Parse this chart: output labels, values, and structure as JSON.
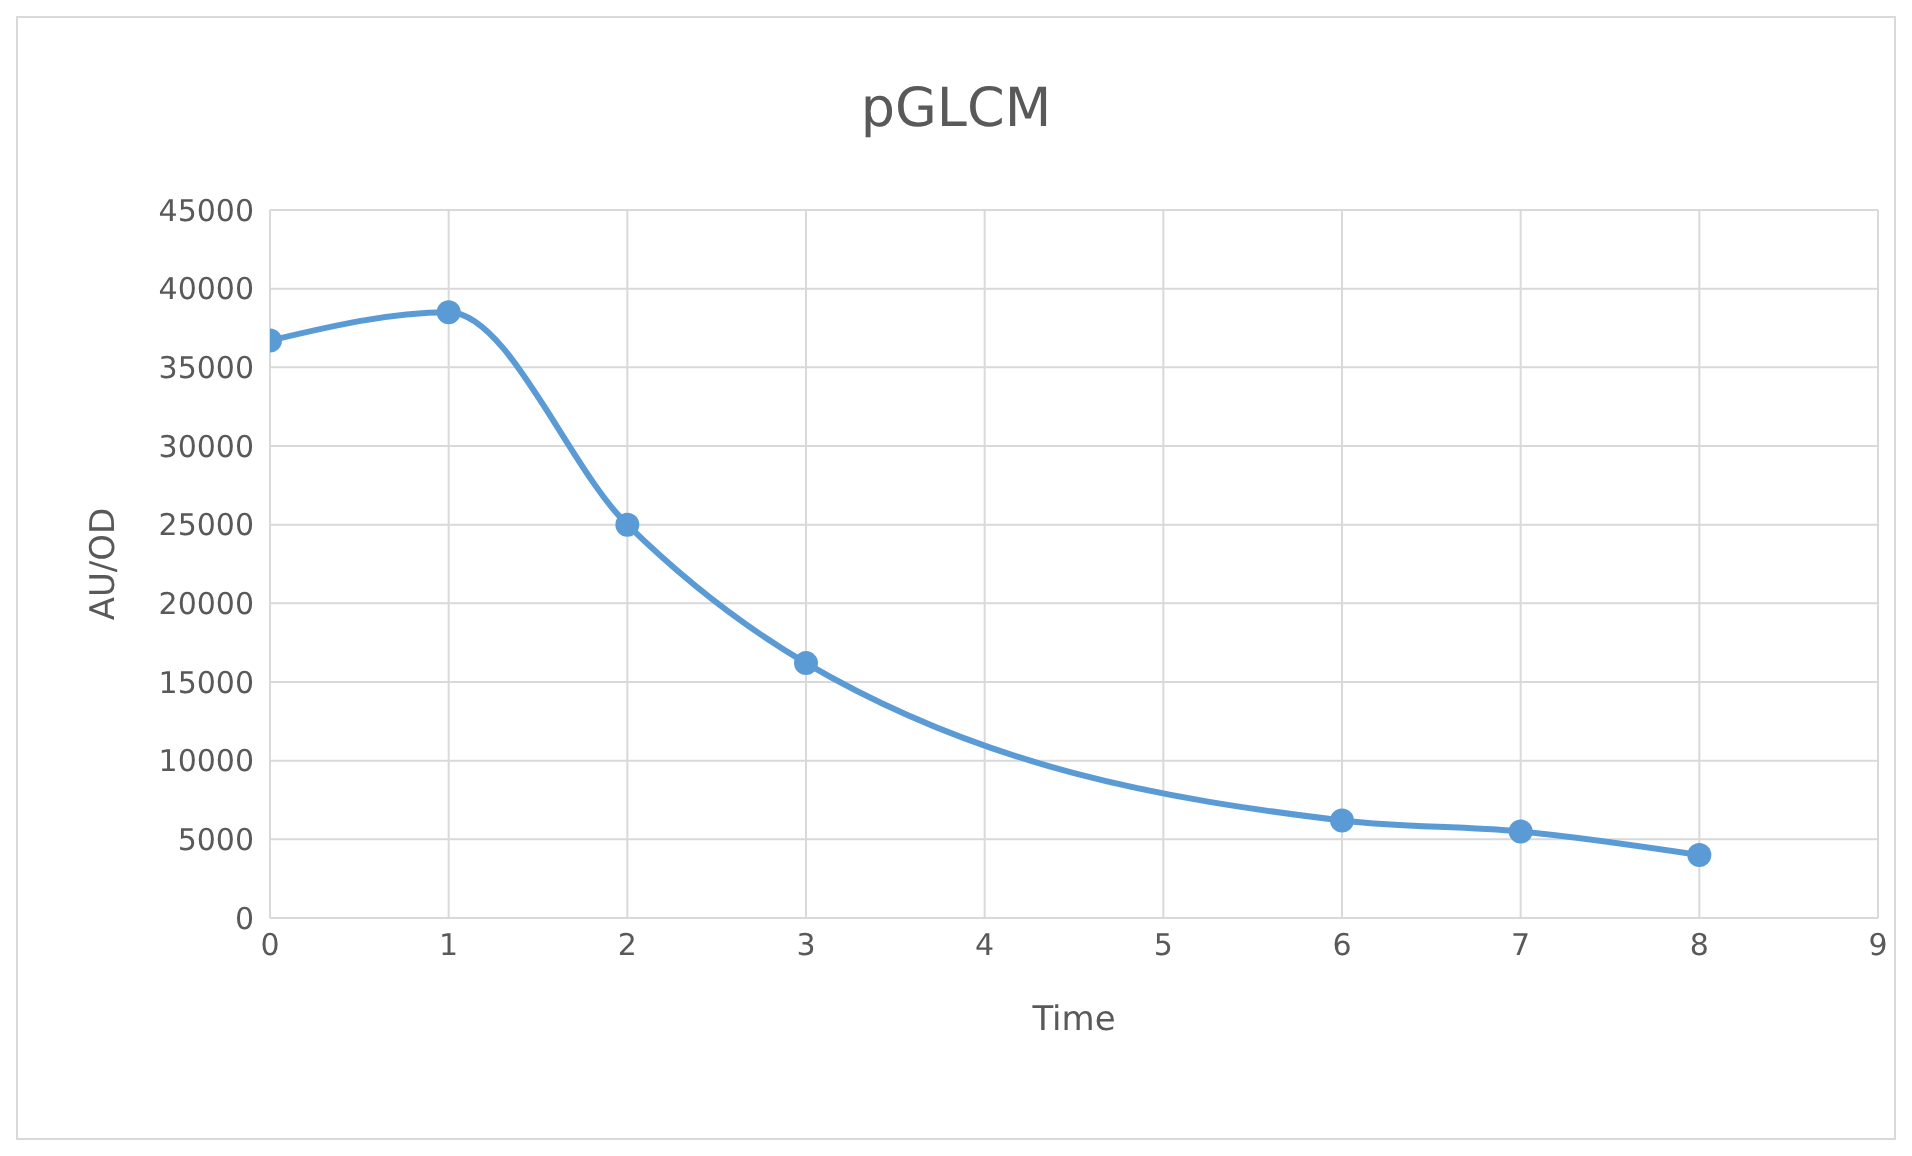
{
  "chart_data": {
    "type": "line",
    "title": "pGLCM",
    "xlabel": "Time",
    "ylabel": "AU/OD",
    "x": [
      0,
      1,
      2,
      3,
      6,
      7,
      8
    ],
    "series": [
      {
        "color": "#5b9bd5",
        "values": [
          36700,
          38500,
          25000,
          16200,
          6200,
          5500,
          4000
        ]
      }
    ],
    "xlim": [
      0,
      9
    ],
    "xticks": [
      0,
      1,
      2,
      3,
      4,
      5,
      6,
      7,
      8,
      9
    ],
    "ylim": [
      0,
      45000
    ],
    "yticks": [
      0,
      5000,
      10000,
      15000,
      20000,
      25000,
      30000,
      35000,
      40000,
      45000
    ],
    "grid": true,
    "marker": "circle",
    "line_style": "solid"
  }
}
